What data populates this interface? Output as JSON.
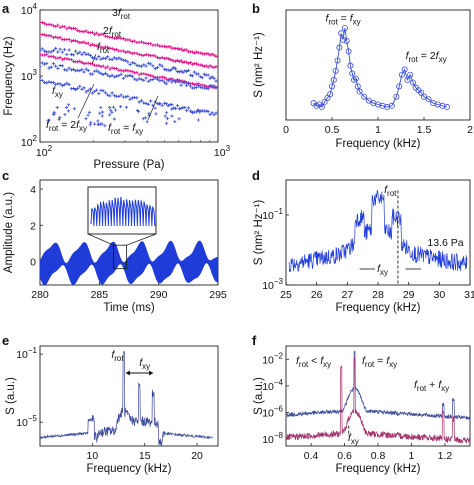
{
  "panel_labels": [
    "a",
    "b",
    "c",
    "d",
    "e",
    "f"
  ],
  "chart_data": [
    {
      "panel": "a",
      "type": "scatter",
      "xlabel": "Pressure (Pa)",
      "ylabel": "Frequency (Hz)",
      "xscale": "log",
      "yscale": "log",
      "xlim": [
        100,
        1000
      ],
      "ylim": [
        100,
        10000
      ],
      "xticks": [
        {
          "v": 100,
          "t": "10",
          "e": "2"
        },
        {
          "v": 1000,
          "t": "10",
          "e": "3"
        }
      ],
      "yticks": [
        {
          "v": 100,
          "t": "10",
          "e": "2"
        },
        {
          "v": 1000,
          "t": "10",
          "e": "3"
        },
        {
          "v": 10000,
          "t": "10",
          "e": "4"
        }
      ],
      "colors": {
        "rot": "#e0138c",
        "xy": "#3a4fd6"
      },
      "series": [
        {
          "color": "rot",
          "x": [
            100,
            150,
            220,
            330,
            500,
            700,
            1000
          ],
          "y": [
            6500,
            5200,
            4200,
            3400,
            2800,
            2350,
            2000
          ]
        },
        {
          "color": "rot",
          "x": [
            100,
            150,
            220,
            330,
            500,
            700,
            1000
          ],
          "y": [
            4300,
            3450,
            2800,
            2250,
            1850,
            1560,
            1330
          ]
        },
        {
          "color": "rot",
          "x": [
            100,
            150,
            220,
            330,
            500,
            700,
            1000
          ],
          "y": [
            2150,
            1720,
            1400,
            1130,
            930,
            780,
            665
          ]
        },
        {
          "color": "xy",
          "x": [
            100,
            150,
            220,
            330,
            500,
            700,
            1000
          ],
          "y": [
            2600,
            2250,
            1900,
            1600,
            1320,
            1100,
            900
          ]
        },
        {
          "color": "xy",
          "x": [
            100,
            150,
            220,
            330,
            500,
            700,
            1000
          ],
          "y": [
            900,
            700,
            560,
            450,
            360,
            300,
            250
          ]
        },
        {
          "color": "xy",
          "x": [
            100,
            150,
            220,
            330,
            500,
            700,
            1000
          ],
          "y": [
            1500,
            1300,
            1100,
            950,
            830,
            720,
            640
          ]
        }
      ],
      "annotations": [
        {
          "t": "3",
          "sub": "rot",
          "pre": "",
          "f": true,
          "x": 112,
          "y": 58
        },
        {
          "t": "2",
          "sub": "rot",
          "pre": "",
          "f": true,
          "x": 103,
          "y": 72
        },
        {
          "t": "f",
          "sub": "rot",
          "pre": "",
          "f": false,
          "x": 97,
          "y": 89
        },
        {
          "t": "f",
          "sub": "xy",
          "pre": "",
          "f": false,
          "x": 40,
          "y": 108
        },
        {
          "t": "f",
          "sub": "rot",
          "pre": "",
          "f": false,
          "x": 46,
          "y": 128,
          "suffix": " = 2f",
          "suffixsub": "xy"
        },
        {
          "t": "f",
          "sub": "rot",
          "pre": "",
          "f": false,
          "x": 108,
          "y": 132,
          "suffix": " = f",
          "suffixsub": "xy"
        }
      ]
    },
    {
      "panel": "b",
      "type": "line",
      "xlabel": "Frequency (kHz)",
      "ylabel": "S (nm² Hz⁻¹)",
      "xlim": [
        0,
        2
      ],
      "ylim": [
        0,
        8.5
      ],
      "xticks": [
        0,
        0.5,
        1,
        1.5,
        2
      ],
      "color": "#3a4fd6",
      "x": [
        0.3,
        0.33,
        0.36,
        0.39,
        0.42,
        0.45,
        0.48,
        0.5,
        0.52,
        0.54,
        0.56,
        0.58,
        0.6,
        0.62,
        0.64,
        0.66,
        0.68,
        0.7,
        0.72,
        0.74,
        0.76,
        0.78,
        0.8,
        0.85,
        0.9,
        0.95,
        1.0,
        1.05,
        1.1,
        1.15,
        1.2,
        1.23,
        1.26,
        1.29,
        1.32,
        1.35,
        1.38,
        1.41,
        1.44,
        1.47,
        1.5,
        1.55,
        1.6,
        1.65,
        1.7,
        1.75
      ],
      "y": [
        1.3,
        1.1,
        1.2,
        1.0,
        1.4,
        1.7,
        2.0,
        2.6,
        3.1,
        3.8,
        4.6,
        5.6,
        6.7,
        6.2,
        7.1,
        6.1,
        5.3,
        4.2,
        3.6,
        3.1,
        3.2,
        2.6,
        2.2,
        1.8,
        1.5,
        1.3,
        1.2,
        1.1,
        1.0,
        1.1,
        1.8,
        2.6,
        3.5,
        3.9,
        3.1,
        3.5,
        2.9,
        2.5,
        2.3,
        2.1,
        1.8,
        1.6,
        1.3,
        1.2,
        1.1,
        1.0
      ],
      "annotations": [
        {
          "text": "f",
          "sub": "rot",
          "rest": " = f",
          "restsub": "xy",
          "x": 0.62,
          "y": 7.6
        },
        {
          "text": "f",
          "sub": "rot",
          "rest": " = 2f",
          "restsub": "xy",
          "x": 1.3,
          "y": 4.7
        }
      ]
    },
    {
      "panel": "c",
      "type": "area",
      "xlabel": "Time (ms)",
      "ylabel": "Amplitude (a.u.)",
      "xlim": [
        280,
        295
      ],
      "ylim": [
        -1.3,
        4.5
      ],
      "xticks": [
        280,
        285,
        290,
        295
      ],
      "yticks": [
        0,
        2,
        4
      ],
      "color": "#1f3bd8",
      "inset_color": "#1f3bd8"
    },
    {
      "panel": "d",
      "type": "line",
      "xlabel": "Frequency (kHz)",
      "ylabel": "S (nm² Hz⁻¹)",
      "xlim": [
        25,
        31
      ],
      "yscale": "log",
      "ylim": [
        0.001,
        1
      ],
      "xticks": [
        25,
        26,
        27,
        28,
        29,
        30,
        31
      ],
      "yticks": [
        {
          "v": 0.001,
          "t": "10",
          "e": "−3"
        },
        {
          "v": 0.1,
          "t": "10",
          "e": "−1"
        }
      ],
      "color": "#1f3bd8",
      "pressure_label": "13.6 Pa",
      "annotations": [
        {
          "t": "f",
          "sub": "rot"
        },
        {
          "t": "f",
          "sub": "xy"
        }
      ]
    },
    {
      "panel": "e",
      "type": "line",
      "xlabel": "Frequency (kHz)",
      "ylabel": "S (a.u.)",
      "xlim": [
        5,
        22
      ],
      "yscale": "log",
      "ylim": [
        4e-07,
        0.3
      ],
      "xticks": [
        10,
        15,
        20
      ],
      "yticks": [
        {
          "v": 1e-05,
          "t": "10",
          "e": "−5"
        },
        {
          "v": 0.1,
          "t": "10",
          "e": "−1"
        }
      ],
      "color": "#3a4a9a",
      "annotations": [
        {
          "t": "f",
          "sub": "rot"
        },
        {
          "t": "f",
          "sub": "xy"
        }
      ]
    },
    {
      "panel": "f",
      "type": "line",
      "xlabel": "Frequency (kHz)",
      "ylabel": "S (a.u.)",
      "xlim": [
        0.25,
        1.35
      ],
      "yscale": "log",
      "ylim": [
        3e-09,
        0.1
      ],
      "xticks": [
        0.4,
        0.6,
        0.8,
        1,
        1.2
      ],
      "yticks": [
        {
          "v": 1e-08,
          "t": "10",
          "e": "−8"
        },
        {
          "v": 1e-06,
          "t": "10",
          "e": "−6"
        },
        {
          "v": 0.0001,
          "t": "10",
          "e": "−4"
        },
        {
          "v": 0.01,
          "t": "10",
          "e": "−2"
        }
      ],
      "colors": [
        "#3a4a9a",
        "#a0306a"
      ],
      "annotations": [
        {
          "a": "f",
          "as": "rot",
          "rel": " < f",
          "bs": "xy"
        },
        {
          "a": "f",
          "as": "rot",
          "rel": " = f",
          "bs": "xy"
        },
        {
          "a": "f",
          "as": "rot",
          "rel": " + f",
          "bs": "xy"
        },
        {
          "a": "f",
          "as": "xy",
          "rel": "",
          "bs": ""
        }
      ]
    }
  ]
}
